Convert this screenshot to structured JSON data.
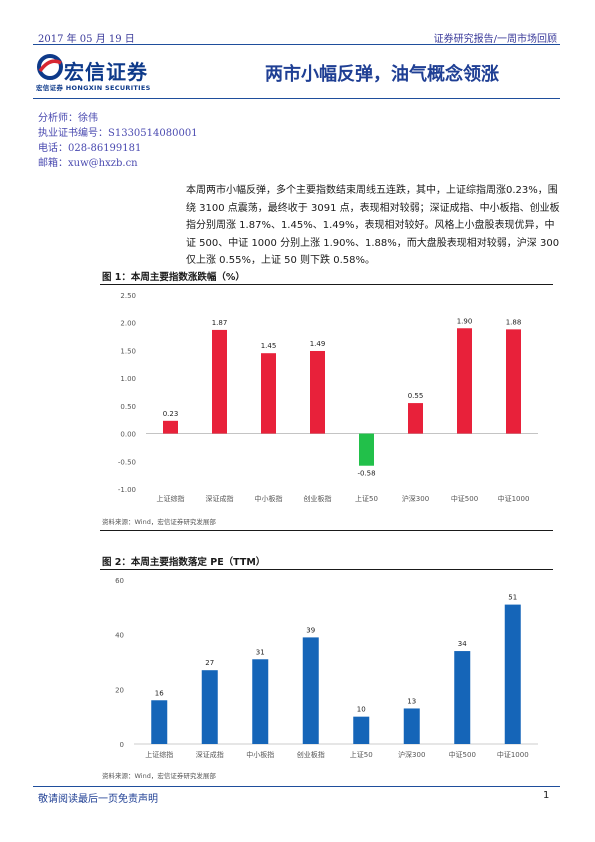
{
  "header": {
    "date": "2017 年 05 月 19 日",
    "report_type": "证券研究报告/一周市场回顾"
  },
  "logo": {
    "name_cn": "宏信证券",
    "name_en": "宏信证券  HONGXIN SECURITIES",
    "brand_color": "#0e3a8a",
    "accent_color": "#d72631"
  },
  "title": "两市小幅反弹，油气概念领涨",
  "analyst": {
    "name": "分析师：徐伟",
    "license": "执业证书编号：S1330514080001",
    "phone": "电话：028-86199181",
    "email": "邮箱：xuw@hxzb.cn"
  },
  "summary": "本周两市小幅反弹，多个主要指数结束周线五连跌，其中，上证综指周涨0.23%，围绕 3100 点震荡，最终收于 3091 点，表现相对较弱；深证成指、中小板指、创业板指分别周涨 1.87%、1.45%、1.49%，表现相对较好。风格上小盘股表现优异，中证 500、中证 1000 分别上涨 1.90%、1.88%，而大盘股表现相对较弱，沪深 300 仅上涨 0.55%，上证 50 则下跌 0.58%。",
  "figures": [
    {
      "title": "图 1：本周主要指数涨跌幅（%）",
      "source": "资料来源：Wind，宏信证券研究发展部"
    },
    {
      "title": "图 2：本周主要指数落定 PE（TTM）",
      "source": "资料来源：Wind，宏信证券研究发展部"
    }
  ],
  "chart_data": [
    {
      "type": "bar",
      "title": "图 1：本周主要指数涨跌幅（%）",
      "categories": [
        "上证综指",
        "深证成指",
        "中小板指",
        "创业板指",
        "上证50",
        "沪深300",
        "中证500",
        "中证1000"
      ],
      "values": [
        0.23,
        1.87,
        1.45,
        1.49,
        -0.58,
        0.55,
        1.9,
        1.88
      ],
      "value_labels": [
        "0.23",
        "1.87",
        "1.45",
        "1.49",
        "-0.58",
        "0.55",
        "1.90",
        "1.88"
      ],
      "ylim": [
        -1.0,
        2.5
      ],
      "yticks": [
        "2.50",
        "2.00",
        "1.50",
        "1.00",
        "0.50",
        "0.00",
        "-0.50",
        "-1.00"
      ],
      "positive_color": "#e8213a",
      "negative_color": "#22c04a",
      "grid": false
    },
    {
      "type": "bar",
      "title": "图 2：本周主要指数落定 PE（TTM）",
      "categories": [
        "上证综指",
        "深证成指",
        "中小板指",
        "创业板指",
        "上证50",
        "沪深300",
        "中证500",
        "中证1000"
      ],
      "values": [
        16,
        27,
        31,
        39,
        10,
        13,
        34,
        51
      ],
      "value_labels": [
        "16",
        "27",
        "31",
        "39",
        "10",
        "13",
        "34",
        "51"
      ],
      "ylim": [
        0,
        60
      ],
      "yticks": [
        "60",
        "40",
        "20",
        "0"
      ],
      "color": "#1565b8",
      "grid": false
    }
  ],
  "footer": {
    "disclaimer": "敬请阅读最后一页免责声明",
    "page_number": "1"
  }
}
